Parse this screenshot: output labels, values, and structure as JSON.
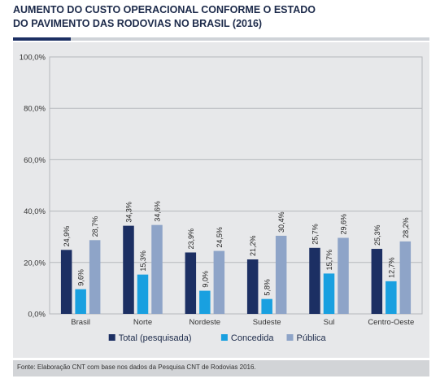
{
  "title_line1": "AUMENTO DO CUSTO OPERACIONAL CONFORME O ESTADO",
  "title_line2": "DO PAVIMENTO DAS RODOVIAS NO BRASIL (2016)",
  "source": "Fonte: Elaboração CNT com base nos dados da Pesquisa CNT de Rodovias 2016.",
  "chart_data": {
    "type": "bar",
    "categories": [
      "Brasil",
      "Norte",
      "Nordeste",
      "Sudeste",
      "Sul",
      "Centro-Oeste"
    ],
    "series": [
      {
        "name": "Total (pesquisada)",
        "values": [
          24.9,
          34.3,
          23.9,
          21.2,
          25.7,
          25.3
        ],
        "labels": [
          "24,9%",
          "34,3%",
          "23,9%",
          "21,2%",
          "25,7%",
          "25,3%"
        ],
        "color": "#1c2f63"
      },
      {
        "name": "Concedida",
        "values": [
          9.6,
          15.3,
          9.0,
          5.8,
          15.7,
          12.7
        ],
        "labels": [
          "9,6%",
          "15,3%",
          "9,0%",
          "5,8%",
          "15,7%",
          "12,7%"
        ],
        "color": "#19a0e0"
      },
      {
        "name": "Pública",
        "values": [
          28.7,
          34.6,
          24.5,
          30.4,
          29.6,
          28.2
        ],
        "labels": [
          "28,7%",
          "34,6%",
          "24,5%",
          "30,4%",
          "29,6%",
          "28,2%"
        ],
        "color": "#8ea4c8"
      }
    ],
    "yticks": [
      "0,0%",
      "20,0%",
      "40,0%",
      "60,0%",
      "80,0%",
      "100,0%"
    ],
    "ylim": [
      0,
      100
    ],
    "grid": true,
    "legend": "bottom"
  }
}
